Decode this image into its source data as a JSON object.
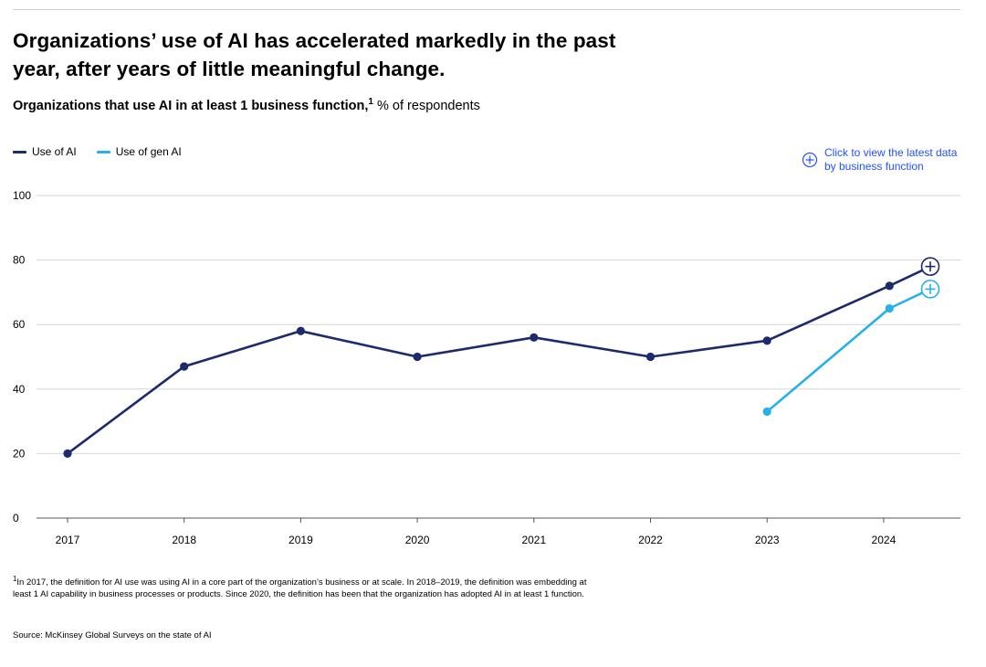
{
  "header": {
    "title": "Organizations’ use of AI has accelerated markedly in the past year, after years of little meaningful change.",
    "subtitle_bold": "Organizations that use AI in at least 1 business function,",
    "subtitle_sup": "1",
    "subtitle_rest": " % of respondents"
  },
  "legend": {
    "items": [
      {
        "label": "Use of AI",
        "color": "#1d2a6b"
      },
      {
        "label": "Use of gen AI",
        "color": "#27b0ea"
      }
    ]
  },
  "latest_link": {
    "text": "Click to view the latest data by business function",
    "icon": "plus-circle-icon",
    "color": "#2251ff"
  },
  "chart_data": {
    "type": "line",
    "title": "Organizations that use AI in at least 1 business function",
    "ylabel": "% of respondents",
    "xlabel": "",
    "ylim": [
      0,
      100
    ],
    "yticks": [
      0,
      20,
      40,
      60,
      80,
      100
    ],
    "categories": [
      "2017",
      "2018",
      "2019",
      "2020",
      "2021",
      "2022",
      "2023",
      "2024"
    ],
    "grid": true,
    "series": [
      {
        "name": "Use of AI",
        "color": "#1d2a6b",
        "points": [
          {
            "x": 2017,
            "y": 20
          },
          {
            "x": 2018,
            "y": 47
          },
          {
            "x": 2019,
            "y": 58
          },
          {
            "x": 2020,
            "y": 50
          },
          {
            "x": 2021,
            "y": 56
          },
          {
            "x": 2022,
            "y": 50
          },
          {
            "x": 2023,
            "y": 55
          },
          {
            "x": 2024.05,
            "y": 72
          },
          {
            "x": 2024.4,
            "y": 78,
            "marker": "plus-circle"
          }
        ]
      },
      {
        "name": "Use of gen AI",
        "color": "#27b0ea",
        "points": [
          {
            "x": 2023,
            "y": 33
          },
          {
            "x": 2024.05,
            "y": 65
          },
          {
            "x": 2024.4,
            "y": 71,
            "marker": "plus-circle"
          }
        ]
      }
    ]
  },
  "footnote": {
    "sup": "1",
    "text": "In 2017, the definition for AI use was using AI in a core part of the organization’s business or at scale. In 2018–2019, the definition was embedding at least 1 AI capability in business processes or products. Since 2020, the definition has been that the organization has adopted AI in at least 1 function."
  },
  "source": "Source: McKinsey Global Surveys on the state of AI"
}
